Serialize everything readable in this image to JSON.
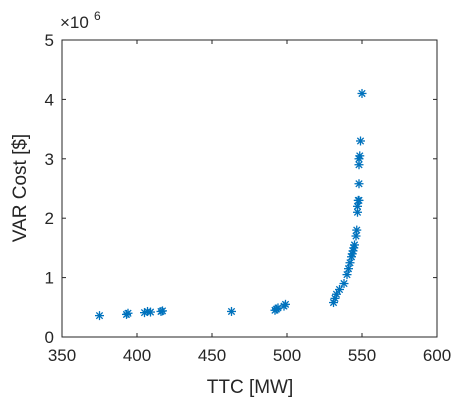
{
  "chart_data": {
    "type": "scatter",
    "xlabel": "TTC [MW]",
    "ylabel": "VAR Cost [$]",
    "y_exponent_label": "×10",
    "y_exponent_power": "6",
    "xlim": [
      350,
      600
    ],
    "ylim": [
      0,
      5
    ],
    "y_scale_factor": 1000000,
    "x_ticks": [
      350,
      400,
      450,
      500,
      550,
      600
    ],
    "y_ticks": [
      0,
      1,
      2,
      3,
      4,
      5
    ],
    "x_tick_labels": [
      "350",
      "400",
      "450",
      "500",
      "550",
      "600"
    ],
    "y_tick_labels": [
      "0",
      "1",
      "2",
      "3",
      "4",
      "5"
    ],
    "marker": "asterisk",
    "marker_color": "#0072BD",
    "grid": false,
    "box": true,
    "series": [
      {
        "x": [
          375,
          393,
          394,
          405,
          407,
          409,
          416,
          417,
          463,
          492,
          493,
          494,
          498,
          499,
          531,
          532,
          533,
          535,
          538,
          540,
          541,
          542,
          543,
          543.5,
          544,
          544.5,
          545,
          546,
          546.5,
          547,
          547,
          547.5,
          548,
          548,
          548,
          548,
          548.5,
          549,
          550
        ],
        "y": [
          0.36,
          0.38,
          0.4,
          0.41,
          0.43,
          0.42,
          0.43,
          0.44,
          0.43,
          0.45,
          0.47,
          0.49,
          0.52,
          0.55,
          0.58,
          0.65,
          0.72,
          0.8,
          0.9,
          1.05,
          1.15,
          1.25,
          1.35,
          1.4,
          1.45,
          1.5,
          1.55,
          1.7,
          1.8,
          2.1,
          2.2,
          2.3,
          2.3,
          2.58,
          2.9,
          3.0,
          3.05,
          3.3,
          4.1
        ]
      }
    ]
  }
}
